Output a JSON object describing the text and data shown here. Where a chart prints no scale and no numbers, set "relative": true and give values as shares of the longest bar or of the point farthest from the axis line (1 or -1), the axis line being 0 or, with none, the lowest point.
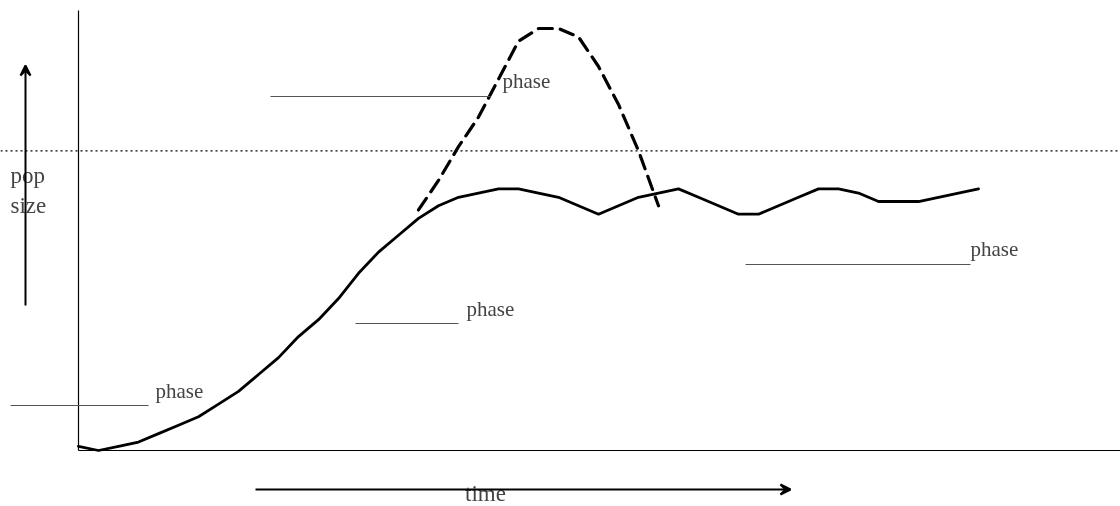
{
  "chart_data": {
    "type": "line",
    "relative": true,
    "xlabel": "time",
    "ylabel": "pop size",
    "categories": [
      null,
      null,
      null,
      null,
      null,
      null,
      null,
      null,
      null,
      null,
      null,
      null,
      null,
      null,
      null,
      null,
      null,
      null,
      null,
      null,
      null,
      null,
      null,
      null,
      null,
      null,
      null,
      null,
      null,
      null,
      null,
      null,
      null,
      null,
      null,
      null,
      null,
      null,
      null,
      null,
      null,
      null,
      null,
      null,
      null,
      null
    ],
    "series": [
      {
        "color": "#000000",
        "line_style": "solid",
        "values": [
          0.01,
          0.0,
          0.01,
          0.02,
          0.04,
          0.06,
          0.08,
          0.11,
          0.14,
          0.18,
          0.22,
          0.27,
          0.31,
          0.36,
          0.42,
          0.47,
          0.51,
          0.55,
          0.58,
          0.6,
          0.61,
          0.62,
          0.62,
          0.61,
          0.6,
          0.58,
          0.56,
          0.58,
          0.6,
          0.61,
          0.62,
          0.6,
          0.58,
          0.56,
          0.56,
          0.58,
          0.6,
          0.62,
          0.62,
          0.61,
          0.59,
          0.59,
          0.59,
          0.6,
          0.61,
          0.62
        ]
      },
      {
        "color": "#000000",
        "line_style": "dashed",
        "values": [
          null,
          null,
          null,
          null,
          null,
          null,
          null,
          null,
          null,
          null,
          null,
          null,
          null,
          null,
          null,
          null,
          null,
          0.57,
          0.64,
          0.72,
          0.79,
          0.88,
          0.97,
          1.0,
          1.0,
          0.98,
          0.91,
          0.82,
          0.71,
          0.58,
          null,
          null,
          null,
          null,
          null,
          null,
          null,
          null,
          null,
          null,
          null,
          null,
          null,
          null,
          null,
          null
        ]
      }
    ],
    "ref_lines": [
      {
        "axis": "y",
        "value": 0.71,
        "color": "#000000",
        "line_style": "dotted"
      }
    ],
    "annotations": [
      "phase",
      "phase",
      "phase",
      "phase"
    ],
    "grid": false
  }
}
